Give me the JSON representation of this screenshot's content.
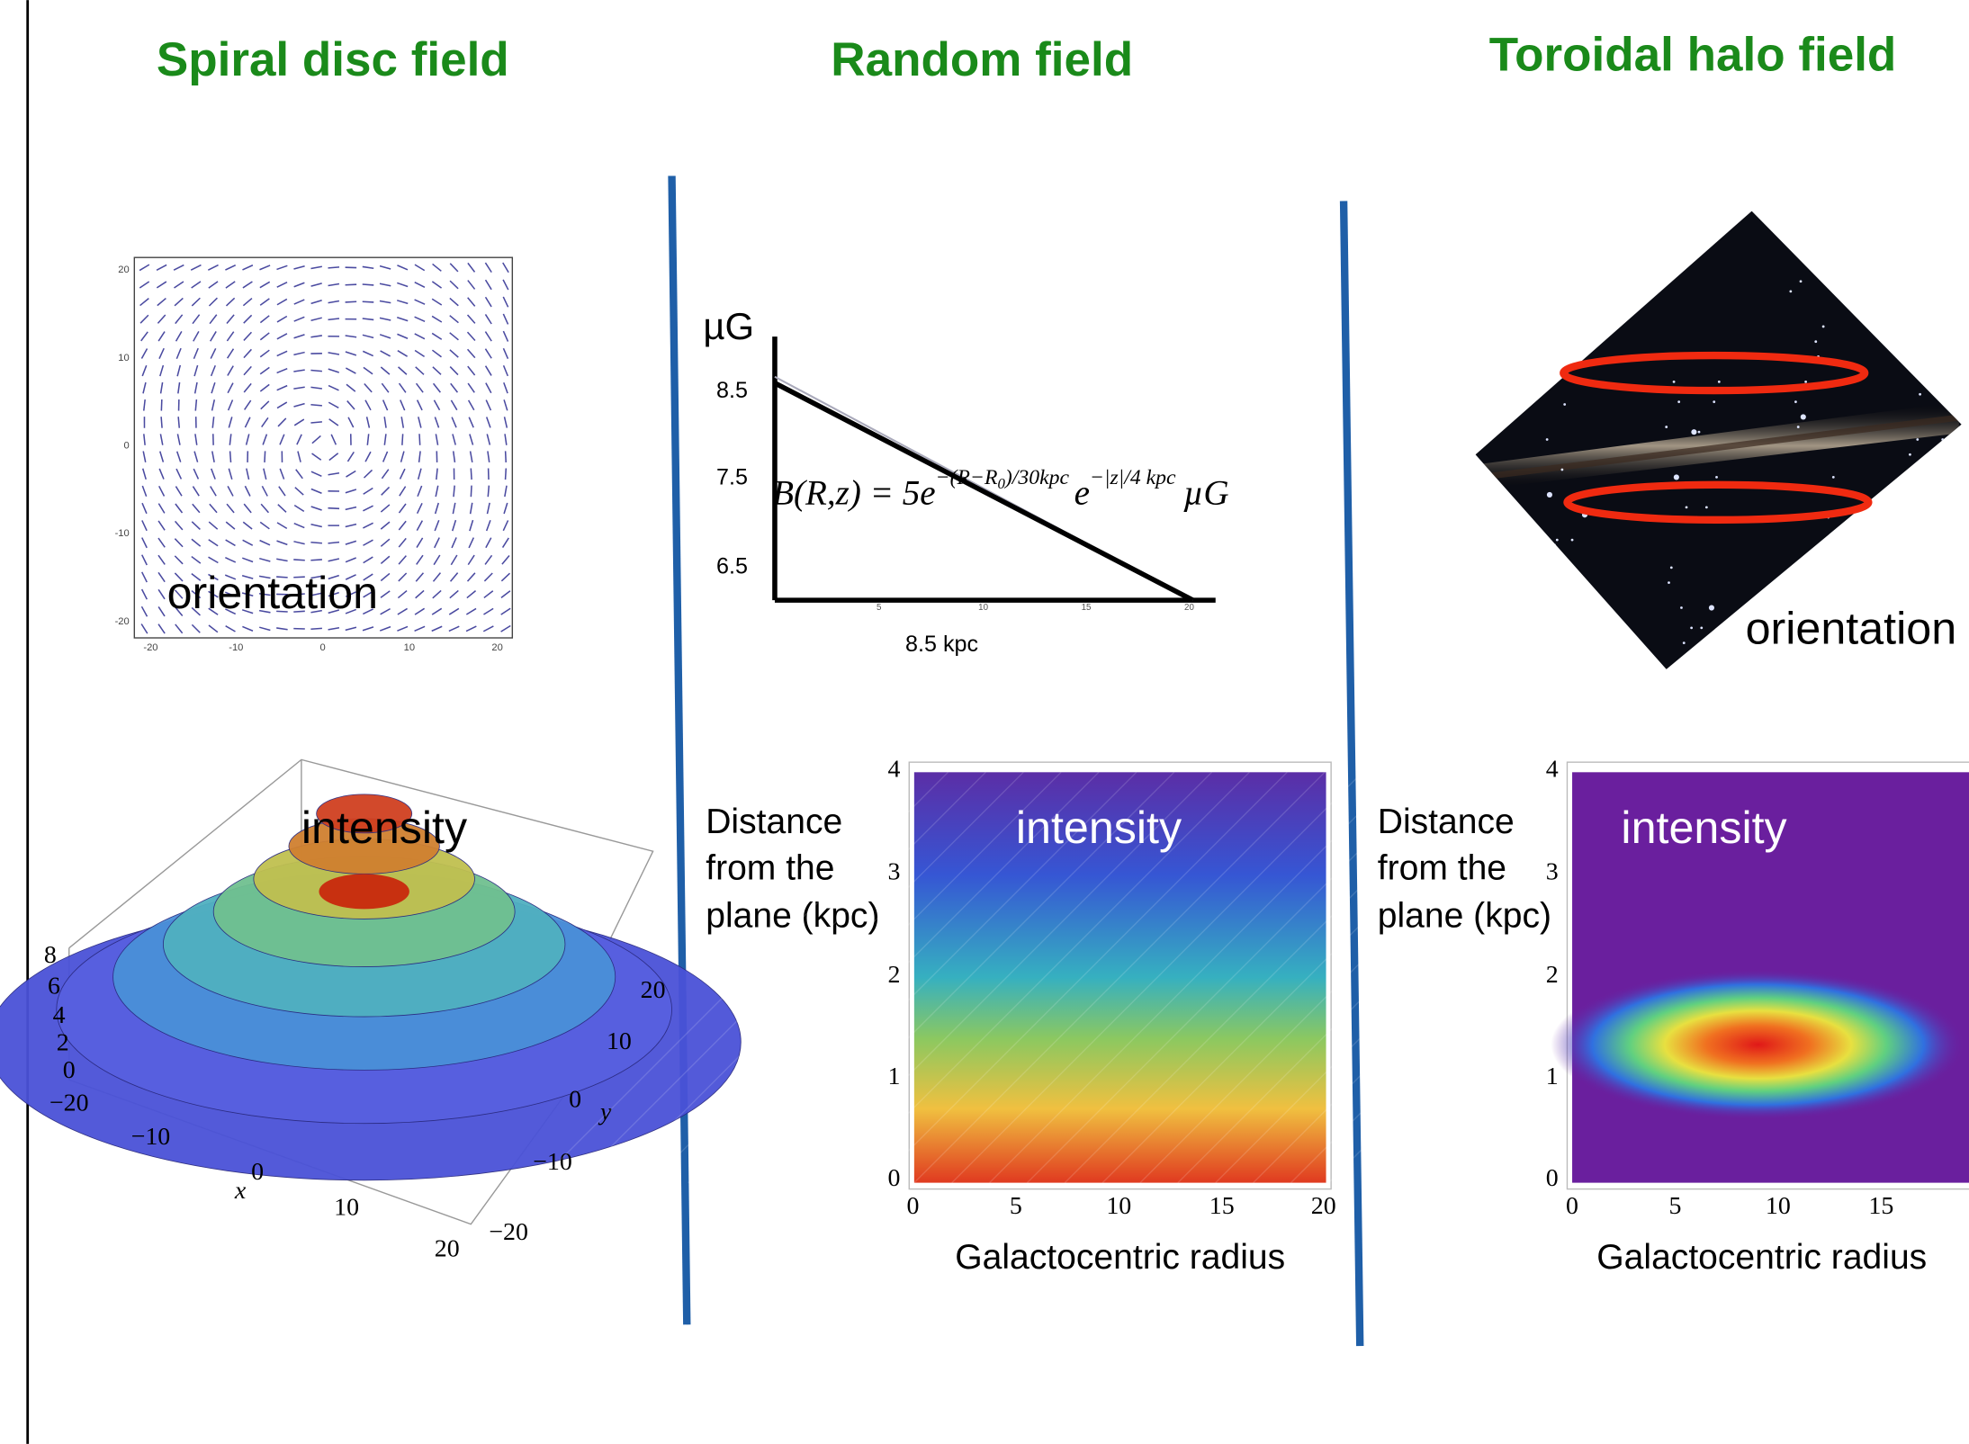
{
  "panels": [
    {
      "title": "Spiral disc field",
      "orientation_plot": {
        "label": "orientation",
        "yticks": [
          "20",
          "10",
          "0",
          "-10",
          "-20"
        ],
        "xticks": [
          "-20",
          "-10",
          "0",
          "10",
          "20"
        ]
      },
      "intensity_plot": {
        "label": "intensity",
        "zticks": [
          "8",
          "6",
          "4",
          "2",
          "0"
        ],
        "xticks": [
          "−20",
          "−10",
          "0",
          "10",
          "20"
        ],
        "x_label": "x",
        "yticks": [
          "20",
          "10",
          "0",
          "−10",
          "−20"
        ],
        "y_label": "y"
      }
    },
    {
      "title": "Random field",
      "profile": {
        "unit": "µG",
        "yticks": [
          "8.5",
          "7.5",
          "6.5"
        ],
        "xticks": [
          "5",
          "10",
          "15",
          "20"
        ],
        "x_label": "8.5 kpc",
        "formula": {
          "lhs": "B(R,z) = 5e",
          "exp1": "−(R−R",
          "exp1_sub": "0",
          "exp1_end": ")/30kpc",
          "e2": "e",
          "exp2": "−|z|/4 kpc",
          "unit": "µG"
        }
      },
      "intensity_plot": {
        "label": "intensity",
        "y_label": [
          "Distance",
          "from the",
          "plane (kpc)"
        ],
        "yticks": [
          "4",
          "3",
          "2",
          "1",
          "0"
        ],
        "xticks": [
          "0",
          "5",
          "10",
          "15",
          "20"
        ],
        "x_label": "Galactocentric radius"
      }
    },
    {
      "title": "Toroidal halo field",
      "orientation_label": "orientation",
      "intensity_plot": {
        "label": "intensity",
        "y_label": [
          "Distance",
          "from the",
          "plane (kpc)"
        ],
        "yticks": [
          "4",
          "3",
          "2",
          "1",
          "0"
        ],
        "xticks": [
          "0",
          "5",
          "10",
          "15"
        ],
        "x_label": "Galactocentric radius"
      }
    }
  ]
}
